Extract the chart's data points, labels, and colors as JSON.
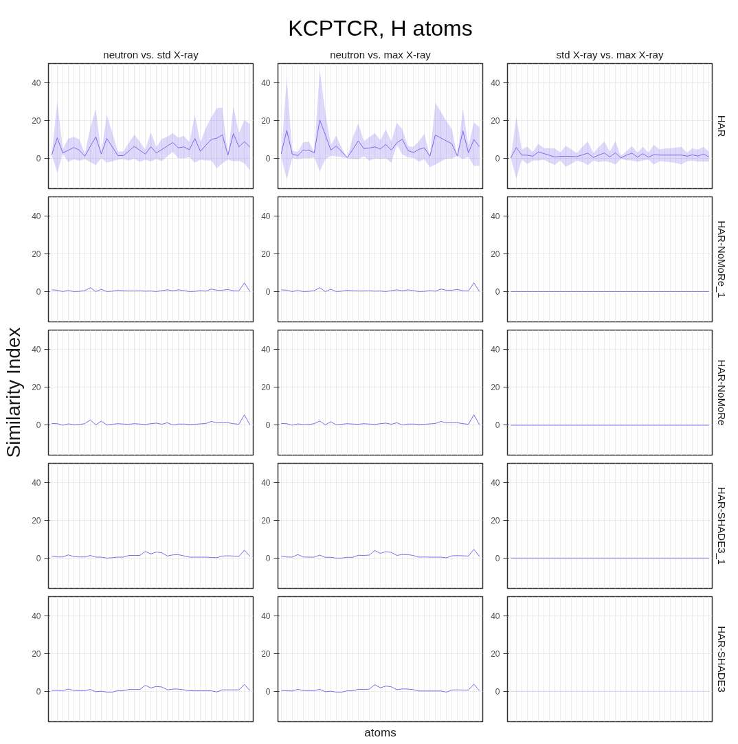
{
  "chart_data": [
    {
      "type": "line",
      "title": "neutron vs. std X-ray",
      "categories": [
        null,
        null,
        null,
        null,
        null,
        null,
        null,
        null,
        null,
        null,
        null,
        null,
        null,
        null,
        null,
        null,
        null,
        null,
        null,
        null,
        null,
        null,
        null,
        null,
        null,
        null,
        null,
        null,
        null,
        null,
        null,
        null,
        null,
        null,
        null,
        null,
        null
      ],
      "ylim": [
        -16,
        50
      ],
      "yticks": [
        0,
        20,
        40
      ],
      "grid": true,
      "tick_labels": "y",
      "series": [
        {
          "color": "#7b68ee",
          "values": [
            1.8,
            10.8,
            2.8,
            4.2,
            5.7,
            4.3,
            1.1,
            6.2,
            11.3,
            2.3,
            10.5,
            6.0,
            1.4,
            1.4,
            3.8,
            6.3,
            4.2,
            2.2,
            6.1,
            2.8,
            4.6,
            6.5,
            8.3,
            5.5,
            6.0,
            4.5,
            10.4,
            3.7,
            6.9,
            10.0,
            10.6,
            12.4,
            1.6,
            13.0,
            6.0,
            8.8,
            5.9
          ],
          "lower": [
            1.6,
            -7.7,
            2.2,
            -2.0,
            -0.5,
            -1.4,
            -0.5,
            -2.0,
            -3.6,
            0.0,
            -2.3,
            -1.6,
            -0.8,
            -0.5,
            -1.2,
            -0.2,
            -1.9,
            -0.8,
            -1.7,
            -0.4,
            -1.6,
            1.0,
            3.4,
            0.0,
            0.0,
            0.6,
            -2.4,
            -0.8,
            -1.1,
            -1.2,
            -5.3,
            -2.7,
            -0.8,
            -1.6,
            -1.4,
            -2.7,
            -6.3
          ],
          "upper": [
            2.0,
            29.9,
            4.9,
            10.4,
            11.3,
            10.0,
            2.5,
            16.0,
            26.1,
            2.8,
            23.0,
            13.6,
            3.6,
            3.6,
            8.2,
            12.5,
            8.8,
            4.6,
            13.7,
            5.9,
            10.2,
            11.4,
            13.3,
            10.8,
            11.8,
            8.6,
            22.9,
            8.6,
            16.0,
            21.7,
            26.5,
            26.7,
            1.6,
            27.2,
            13.4,
            20.2,
            18.1
          ]
        }
      ]
    },
    {
      "type": "line",
      "title": "neutron vs. max X-ray",
      "annotations": [
        "KCPTCR, H atoms"
      ],
      "categories": [
        null,
        null,
        null,
        null,
        null,
        null,
        null,
        null,
        null,
        null,
        null,
        null,
        null,
        null,
        null,
        null,
        null,
        null,
        null,
        null,
        null,
        null,
        null,
        null,
        null,
        null,
        null,
        null,
        null,
        null,
        null,
        null,
        null,
        null,
        null,
        null,
        null
      ],
      "ylim": [
        -16,
        50
      ],
      "yticks": [
        0,
        20,
        40
      ],
      "grid": true,
      "tick_labels": "y",
      "series": [
        {
          "color": "#7b68ee",
          "values": [
            2.4,
            14.8,
            2.2,
            1.4,
            4.3,
            4.3,
            2.9,
            20.2,
            12.4,
            4.3,
            6.5,
            3.4,
            0.4,
            4.7,
            9.2,
            5.1,
            5.4,
            6.0,
            4.9,
            7.3,
            4.3,
            8.2,
            10.1,
            4.1,
            3.0,
            4.7,
            5.5,
            1.1,
            12.3,
            10.7,
            9.2,
            7.6,
            1.2,
            14.5,
            2.9,
            9.9,
            6.1
          ],
          "lower": [
            0.4,
            -11.0,
            0.0,
            -0.5,
            0.0,
            0.0,
            0.4,
            -6.9,
            -0.6,
            1.3,
            1.0,
            0.6,
            0.0,
            -0.4,
            -0.6,
            1.1,
            -1.3,
            0.0,
            -0.4,
            0.0,
            -2.3,
            7.0,
            2.0,
            0.4,
            0.2,
            -1.8,
            -0.6,
            -4.8,
            -3.3,
            -1.7,
            -0.2,
            -0.1,
            1.1,
            -0.4,
            0.8,
            -4.0,
            -3.9
          ],
          "upper": [
            2.4,
            42.5,
            4.0,
            3.4,
            8.4,
            8.8,
            3.4,
            46.7,
            24.5,
            7.0,
            12.0,
            5.2,
            0.4,
            11.2,
            18.4,
            9.0,
            11.2,
            13.3,
            9.6,
            15.2,
            9.0,
            18.7,
            15.4,
            6.4,
            6.0,
            9.0,
            12.9,
            1.1,
            29.2,
            24.5,
            19.6,
            15.4,
            1.2,
            26.3,
            6.4,
            18.9,
            16.4
          ]
        }
      ]
    },
    {
      "type": "line",
      "title": "std X-ray vs. max X-ray",
      "y2label": "HAR",
      "categories": [
        null,
        null,
        null,
        null,
        null,
        null,
        null,
        null,
        null,
        null,
        null,
        null,
        null,
        null,
        null,
        null,
        null,
        null,
        null,
        null,
        null,
        null,
        null,
        null,
        null,
        null,
        null,
        null,
        null,
        null,
        null,
        null,
        null,
        null,
        null,
        null,
        null
      ],
      "ylim": [
        -16,
        50
      ],
      "yticks": [
        0,
        20,
        40
      ],
      "grid": true,
      "tick_labels": "y",
      "series": [
        {
          "color": "#7b68ee",
          "values": [
            0.1,
            5.7,
            1.7,
            1.6,
            1.1,
            3.3,
            2.5,
            1.6,
            0.7,
            1.0,
            1.1,
            1.0,
            0.8,
            1.8,
            2.7,
            0.4,
            1.7,
            2.8,
            0.7,
            2.9,
            0.2,
            1.6,
            2.7,
            0.6,
            2.4,
            0.6,
            1.9,
            1.7,
            1.7,
            1.7,
            1.7,
            1.7,
            1.1,
            1.8,
            1.2,
            2.2,
            0.8
          ],
          "lower": [
            0.1,
            -10.7,
            -0.8,
            -3.0,
            -1.2,
            -1.2,
            -0.8,
            -2.3,
            -3.5,
            -1.2,
            -4.5,
            -2.9,
            -1.2,
            -2.0,
            -3.7,
            -1.2,
            -2.0,
            -1.6,
            -2.0,
            -3.3,
            -0.4,
            -1.0,
            -1.2,
            -1.9,
            -1.2,
            -0.8,
            -3.3,
            -1.6,
            -1.8,
            -2.0,
            -2.5,
            -3.3,
            -1.6,
            -1.3,
            -1.8,
            -1.8,
            -1.8
          ],
          "upper": [
            0.1,
            22.0,
            4.6,
            6.1,
            3.3,
            7.7,
            5.4,
            5.3,
            5.2,
            3.1,
            6.6,
            4.8,
            2.8,
            6.0,
            8.8,
            2.8,
            5.9,
            8.8,
            3.4,
            9.0,
            1.3,
            3.7,
            6.4,
            3.0,
            6.0,
            3.0,
            7.0,
            4.8,
            5.1,
            5.3,
            5.7,
            6.0,
            3.0,
            5.2,
            4.6,
            6.0,
            3.5
          ]
        }
      ]
    },
    {
      "type": "line",
      "categories": [
        null,
        null,
        null,
        null,
        null,
        null,
        null,
        null,
        null,
        null,
        null,
        null,
        null,
        null,
        null,
        null,
        null,
        null,
        null,
        null,
        null,
        null,
        null,
        null,
        null,
        null,
        null,
        null,
        null,
        null,
        null,
        null,
        null,
        null,
        null,
        null,
        null
      ],
      "ylim": [
        -16,
        50
      ],
      "yticks": [
        0,
        20,
        40
      ],
      "grid": true,
      "tick_labels": "y",
      "series": [
        {
          "color": "#7b68ee",
          "values": [
            0.9,
            0.7,
            0.0,
            0.6,
            0.0,
            0.1,
            0.5,
            2.0,
            0.0,
            1.2,
            0.0,
            0.2,
            0.7,
            0.4,
            0.3,
            0.3,
            0.4,
            0.2,
            0.3,
            0.0,
            0.5,
            0.9,
            0.4,
            0.9,
            0.5,
            0.0,
            0.1,
            0.5,
            0.2,
            1.3,
            0.7,
            0.7,
            1.1,
            0.4,
            0.3,
            4.6,
            0.0
          ]
        }
      ]
    },
    {
      "type": "line",
      "categories": [
        null,
        null,
        null,
        null,
        null,
        null,
        null,
        null,
        null,
        null,
        null,
        null,
        null,
        null,
        null,
        null,
        null,
        null,
        null,
        null,
        null,
        null,
        null,
        null,
        null,
        null,
        null,
        null,
        null,
        null,
        null,
        null,
        null,
        null,
        null,
        null,
        null
      ],
      "ylim": [
        -16,
        50
      ],
      "yticks": [
        0,
        20,
        40
      ],
      "grid": true,
      "tick_labels": "y",
      "series": [
        {
          "color": "#7b68ee",
          "values": [
            0.9,
            0.7,
            0.0,
            0.6,
            0.0,
            0.1,
            0.5,
            2.0,
            0.0,
            1.2,
            0.0,
            0.2,
            0.7,
            0.4,
            0.3,
            0.3,
            0.4,
            0.2,
            0.3,
            0.0,
            0.5,
            0.9,
            0.4,
            0.9,
            0.5,
            0.0,
            0.1,
            0.5,
            0.2,
            1.3,
            0.7,
            0.7,
            1.1,
            0.4,
            0.3,
            4.6,
            0.0
          ]
        }
      ]
    },
    {
      "type": "line",
      "y2label": "HAR-NoMoRe_1",
      "categories": [
        null,
        null,
        null,
        null,
        null,
        null,
        null,
        null,
        null,
        null,
        null,
        null,
        null,
        null,
        null,
        null,
        null,
        null,
        null,
        null,
        null,
        null,
        null,
        null,
        null,
        null,
        null,
        null,
        null,
        null,
        null,
        null,
        null,
        null,
        null,
        null,
        null
      ],
      "ylim": [
        -16,
        50
      ],
      "yticks": [
        0,
        20,
        40
      ],
      "grid": true,
      "tick_labels": "y",
      "series": [
        {
          "color": "#7b68ee",
          "values": [
            0,
            0,
            0,
            0,
            0,
            0,
            0,
            0,
            0,
            0,
            0,
            0,
            0,
            0,
            0,
            0,
            0,
            0,
            0,
            0,
            0,
            0,
            0,
            0,
            0,
            0,
            0,
            0,
            0,
            0,
            0,
            0,
            0,
            0,
            0,
            0,
            0
          ]
        }
      ]
    },
    {
      "type": "line",
      "ylabel": "Similarity Index",
      "categories": [
        null,
        null,
        null,
        null,
        null,
        null,
        null,
        null,
        null,
        null,
        null,
        null,
        null,
        null,
        null,
        null,
        null,
        null,
        null,
        null,
        null,
        null,
        null,
        null,
        null,
        null,
        null,
        null,
        null,
        null,
        null,
        null,
        null,
        null,
        null,
        null,
        null
      ],
      "ylim": [
        -16,
        50
      ],
      "yticks": [
        0,
        20,
        40
      ],
      "grid": true,
      "tick_labels": "y",
      "series": [
        {
          "color": "#7b68ee",
          "values": [
            0.7,
            0.6,
            -0.2,
            0.5,
            0.1,
            0.2,
            0.6,
            2.6,
            0.0,
            1.9,
            0.0,
            0.3,
            0.6,
            0.4,
            0.3,
            0.6,
            0.4,
            0.2,
            0.6,
            0.9,
            0.3,
            1.1,
            -0.1,
            0.4,
            0.4,
            0.2,
            0.3,
            0.5,
            0.7,
            1.8,
            1.0,
            1.1,
            1.1,
            0.6,
            0.3,
            5.3,
            0.0
          ]
        }
      ]
    },
    {
      "type": "line",
      "categories": [
        null,
        null,
        null,
        null,
        null,
        null,
        null,
        null,
        null,
        null,
        null,
        null,
        null,
        null,
        null,
        null,
        null,
        null,
        null,
        null,
        null,
        null,
        null,
        null,
        null,
        null,
        null,
        null,
        null,
        null,
        null,
        null,
        null,
        null,
        null,
        null,
        null
      ],
      "ylim": [
        -16,
        50
      ],
      "yticks": [
        0,
        20,
        40
      ],
      "grid": true,
      "tick_labels": "y",
      "series": [
        {
          "color": "#7b68ee",
          "values": [
            0.7,
            0.6,
            -0.2,
            0.5,
            0.1,
            0.2,
            0.6,
            2.0,
            0.0,
            1.6,
            0.0,
            0.3,
            0.6,
            0.4,
            0.3,
            0.6,
            0.4,
            0.2,
            0.6,
            0.9,
            0.3,
            1.1,
            -0.1,
            0.4,
            0.4,
            0.2,
            0.3,
            0.5,
            0.7,
            1.8,
            1.0,
            1.1,
            1.1,
            0.6,
            0.3,
            5.3,
            0.0
          ]
        }
      ]
    },
    {
      "type": "line",
      "y2label": "HAR-NoMoRe",
      "categories": [
        null,
        null,
        null,
        null,
        null,
        null,
        null,
        null,
        null,
        null,
        null,
        null,
        null,
        null,
        null,
        null,
        null,
        null,
        null,
        null,
        null,
        null,
        null,
        null,
        null,
        null,
        null,
        null,
        null,
        null,
        null,
        null,
        null,
        null,
        null,
        null,
        null
      ],
      "ylim": [
        -16,
        50
      ],
      "yticks": [
        0,
        20,
        40
      ],
      "grid": true,
      "tick_labels": "y",
      "series": [
        {
          "color": "#7b68ee",
          "values": [
            -0.2,
            -0.2,
            -0.2,
            -0.2,
            -0.2,
            -0.2,
            -0.2,
            -0.2,
            -0.2,
            -0.2,
            -0.2,
            -0.2,
            -0.2,
            -0.2,
            -0.2,
            -0.2,
            -0.2,
            -0.2,
            -0.2,
            -0.2,
            -0.2,
            -0.2,
            -0.2,
            -0.2,
            -0.2,
            -0.2,
            -0.2,
            -0.2,
            -0.2,
            -0.2,
            -0.2,
            -0.2,
            -0.2,
            -0.2,
            -0.2,
            -0.2,
            -0.2
          ]
        }
      ]
    },
    {
      "type": "line",
      "categories": [
        null,
        null,
        null,
        null,
        null,
        null,
        null,
        null,
        null,
        null,
        null,
        null,
        null,
        null,
        null,
        null,
        null,
        null,
        null,
        null,
        null,
        null,
        null,
        null,
        null,
        null,
        null,
        null,
        null,
        null,
        null,
        null,
        null,
        null,
        null,
        null,
        null
      ],
      "ylim": [
        -16,
        50
      ],
      "yticks": [
        0,
        20,
        40
      ],
      "grid": true,
      "tick_labels": "y",
      "series": [
        {
          "color": "#7b68ee",
          "values": [
            1.1,
            0.6,
            0.6,
            1.7,
            0.8,
            0.6,
            0.6,
            1.4,
            0.5,
            0.5,
            0.0,
            0.2,
            0.5,
            0.5,
            1.4,
            1.4,
            1.4,
            3.5,
            2.2,
            3.2,
            2.8,
            1.1,
            1.7,
            1.8,
            1.2,
            0.5,
            0.5,
            0.5,
            0.5,
            0.3,
            0.2,
            1.1,
            1.2,
            1.1,
            0.9,
            4.2,
            0.9
          ]
        }
      ]
    },
    {
      "type": "line",
      "categories": [
        null,
        null,
        null,
        null,
        null,
        null,
        null,
        null,
        null,
        null,
        null,
        null,
        null,
        null,
        null,
        null,
        null,
        null,
        null,
        null,
        null,
        null,
        null,
        null,
        null,
        null,
        null,
        null,
        null,
        null,
        null,
        null,
        null,
        null,
        null,
        null,
        null
      ],
      "ylim": [
        -16,
        50
      ],
      "yticks": [
        0,
        20,
        40
      ],
      "grid": true,
      "tick_labels": "y",
      "series": [
        {
          "color": "#7b68ee",
          "values": [
            1.0,
            0.6,
            0.5,
            1.9,
            0.6,
            0.5,
            0.5,
            1.6,
            0.4,
            0.4,
            0.0,
            0.0,
            0.4,
            0.4,
            1.5,
            1.4,
            1.6,
            4.0,
            2.5,
            3.4,
            3.0,
            1.4,
            1.9,
            1.8,
            1.4,
            0.5,
            0.6,
            0.5,
            0.5,
            0.5,
            0.1,
            1.2,
            1.3,
            1.2,
            1.1,
            4.6,
            0.9
          ]
        }
      ]
    },
    {
      "type": "line",
      "y2label": "HAR-SHADE3_1",
      "categories": [
        null,
        null,
        null,
        null,
        null,
        null,
        null,
        null,
        null,
        null,
        null,
        null,
        null,
        null,
        null,
        null,
        null,
        null,
        null,
        null,
        null,
        null,
        null,
        null,
        null,
        null,
        null,
        null,
        null,
        null,
        null,
        null,
        null,
        null,
        null,
        null,
        null
      ],
      "ylim": [
        -16,
        50
      ],
      "yticks": [
        0,
        20,
        40
      ],
      "grid": true,
      "tick_labels": "y",
      "series": [
        {
          "color": "#7b68ee",
          "values": [
            0,
            0,
            0,
            0,
            0,
            0,
            0,
            0,
            0,
            0,
            0,
            0,
            0,
            0,
            0,
            0,
            0,
            0,
            0,
            0,
            0,
            0,
            0,
            0,
            0,
            0,
            0,
            0,
            0,
            0,
            0,
            0,
            0,
            0,
            0,
            0,
            0
          ]
        }
      ]
    },
    {
      "type": "line",
      "categories": [
        null,
        null,
        null,
        null,
        null,
        null,
        null,
        null,
        null,
        null,
        null,
        null,
        null,
        null,
        null,
        null,
        null,
        null,
        null,
        null,
        null,
        null,
        null,
        null,
        null,
        null,
        null,
        null,
        null,
        null,
        null,
        null,
        null,
        null,
        null,
        null,
        null
      ],
      "ylim": [
        -16,
        50
      ],
      "yticks": [
        0,
        20,
        40
      ],
      "grid": true,
      "tick_labels": "y",
      "series": [
        {
          "color": "#7b68ee",
          "values": [
            0.5,
            0.5,
            0.4,
            1.2,
            0.5,
            0.4,
            0.4,
            1.0,
            -0.2,
            0.1,
            -0.4,
            -0.4,
            0.4,
            0.3,
            1.0,
            1.0,
            1.0,
            3.2,
            1.8,
            2.6,
            2.3,
            0.8,
            1.2,
            1.2,
            0.8,
            0.3,
            0.3,
            0.3,
            0.3,
            0.3,
            -0.3,
            0.8,
            0.8,
            0.8,
            0.8,
            3.7,
            0.4
          ]
        }
      ]
    },
    {
      "type": "line",
      "xlabel": "atoms",
      "categories": [
        null,
        null,
        null,
        null,
        null,
        null,
        null,
        null,
        null,
        null,
        null,
        null,
        null,
        null,
        null,
        null,
        null,
        null,
        null,
        null,
        null,
        null,
        null,
        null,
        null,
        null,
        null,
        null,
        null,
        null,
        null,
        null,
        null,
        null,
        null,
        null,
        null
      ],
      "ylim": [
        -16,
        50
      ],
      "yticks": [
        0,
        20,
        40
      ],
      "grid": true,
      "tick_labels": "y",
      "series": [
        {
          "color": "#7b68ee",
          "values": [
            0.5,
            0.3,
            0.2,
            1.1,
            0.4,
            0.4,
            0.4,
            1.1,
            -0.2,
            0.1,
            -0.4,
            -0.4,
            0.3,
            0.3,
            1.1,
            1.0,
            1.2,
            3.5,
            1.9,
            2.8,
            2.4,
            0.9,
            1.3,
            1.2,
            0.9,
            0.2,
            0.2,
            0.2,
            0.2,
            0.2,
            -0.4,
            0.7,
            0.8,
            0.7,
            0.7,
            3.8,
            0.3
          ]
        }
      ]
    },
    {
      "type": "line",
      "y2label": "HAR-SHADE3",
      "categories": [
        null,
        null,
        null,
        null,
        null,
        null,
        null,
        null,
        null,
        null,
        null,
        null,
        null,
        null,
        null,
        null,
        null,
        null,
        null,
        null,
        null,
        null,
        null,
        null,
        null,
        null,
        null,
        null,
        null,
        null,
        null,
        null,
        null,
        null,
        null,
        null,
        null
      ],
      "ylim": [
        -16,
        50
      ],
      "yticks": [
        0,
        20,
        40
      ],
      "grid": true,
      "tick_labels": "y",
      "series": [
        {
          "color": "#d6ccf5",
          "values": [
            0,
            0,
            0,
            0,
            0,
            0,
            0,
            0,
            0,
            0,
            0,
            0,
            0,
            0,
            0,
            0,
            0,
            0,
            0,
            0,
            0,
            0,
            0,
            0,
            0,
            0,
            0,
            0,
            0,
            0,
            0,
            0,
            0,
            0,
            0,
            0,
            0
          ]
        }
      ]
    }
  ]
}
